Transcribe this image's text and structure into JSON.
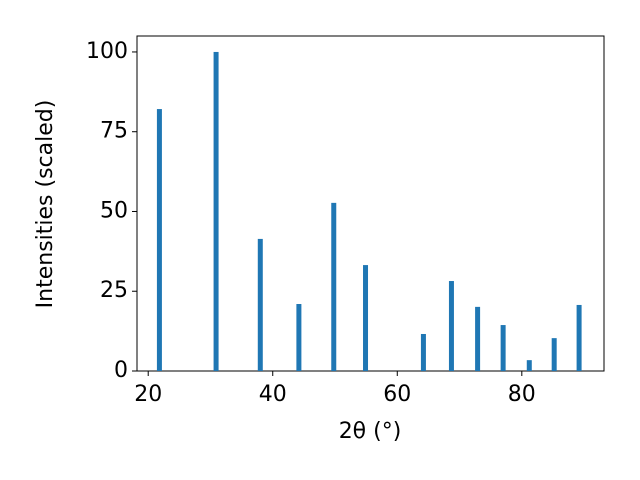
{
  "chart_data": {
    "type": "bar",
    "xlabel": "2θ (°)",
    "ylabel": "Intensities (scaled)",
    "x": [
      21.8,
      30.9,
      38.0,
      44.2,
      49.8,
      54.9,
      64.2,
      68.7,
      72.9,
      77.0,
      81.2,
      85.2,
      89.2
    ],
    "values": [
      82.1,
      100,
      41.4,
      21,
      52.7,
      33.2,
      11.6,
      28.2,
      20.1,
      14.4,
      3.4,
      10.3,
      20.7
    ],
    "color": "#1f77b4",
    "xlim": [
      18.2,
      93.2
    ],
    "xticks": [
      20,
      40,
      60,
      80
    ],
    "ylim": [
      0,
      105
    ],
    "yticks": [
      0,
      25,
      50,
      75,
      100
    ]
  }
}
